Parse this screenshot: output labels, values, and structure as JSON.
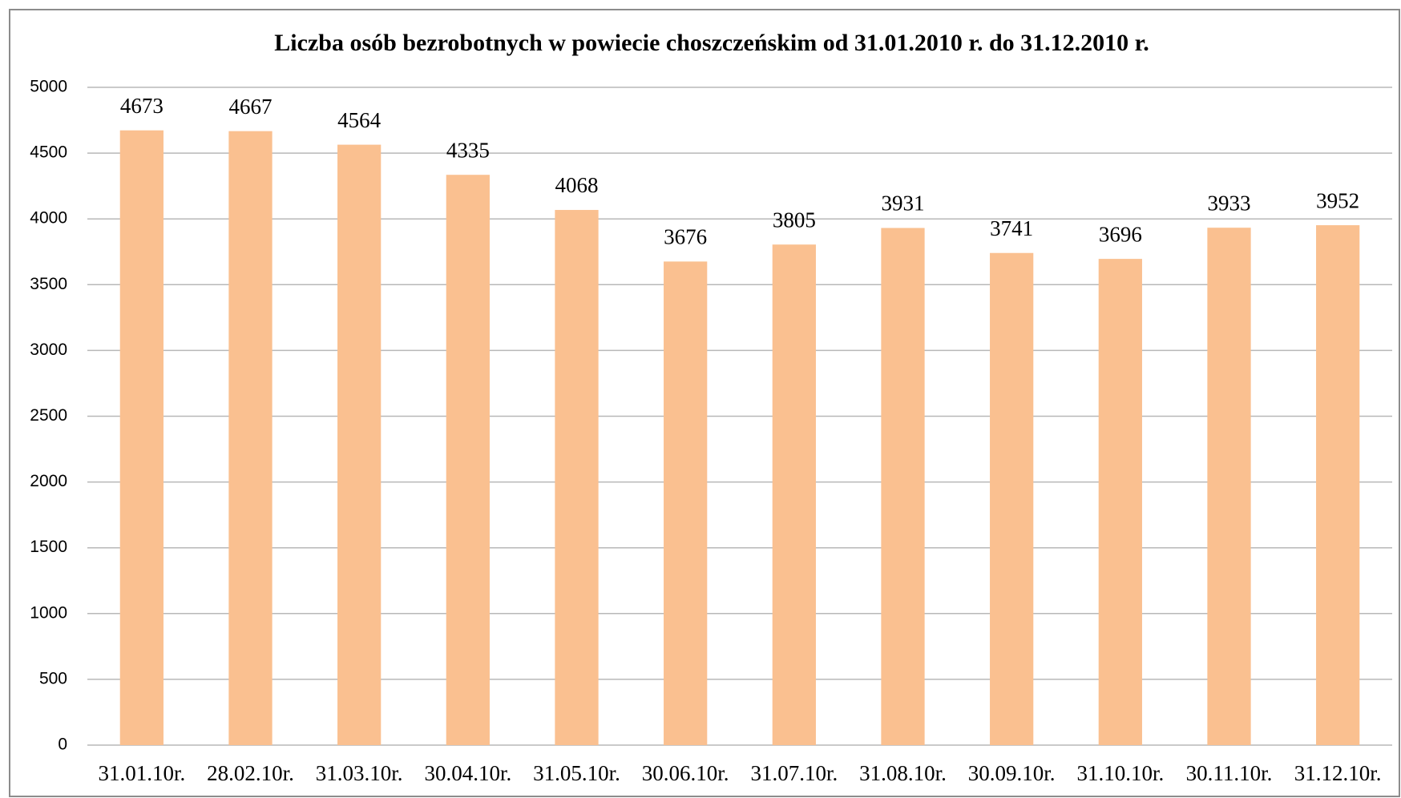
{
  "chart_data": {
    "type": "bar",
    "title": "Liczba osób bezrobotnych w powiecie choszczeńskim od 31.01.2010 r. do 31.12.2010 r.",
    "categories": [
      "31.01.10r.",
      "28.02.10r.",
      "31.03.10r.",
      "30.04.10r.",
      "31.05.10r.",
      "30.06.10r.",
      "31.07.10r.",
      "31.08.10r.",
      "30.09.10r.",
      "31.10.10r.",
      "30.11.10r.",
      "31.12.10r."
    ],
    "values": [
      4673,
      4667,
      4564,
      4335,
      4068,
      3676,
      3805,
      3931,
      3741,
      3696,
      3933,
      3952
    ],
    "color": "#fac090",
    "ylim": [
      0,
      5000
    ],
    "yticks": [
      0,
      500,
      1000,
      1500,
      2000,
      2500,
      3000,
      3500,
      4000,
      4500,
      5000
    ],
    "grid": true
  }
}
